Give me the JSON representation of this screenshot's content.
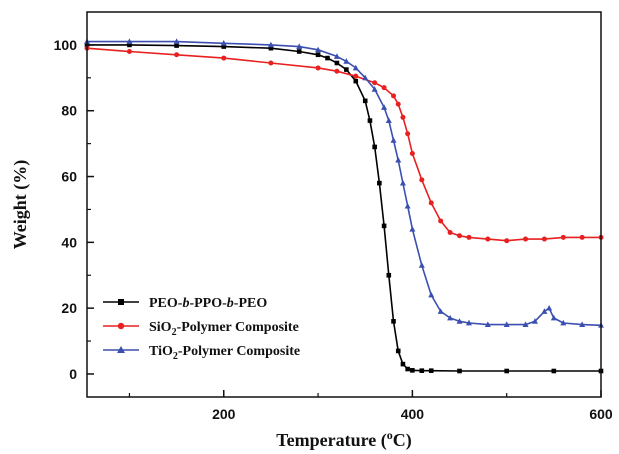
{
  "chart_data": {
    "type": "line",
    "xlabel": {
      "prefix": "Temperature (",
      "sup": "o",
      "suffix": "C)"
    },
    "ylabel": "Weight (%)",
    "xlim": [
      55,
      600
    ],
    "ylim": [
      -7,
      110
    ],
    "xticks": [
      200,
      400,
      600
    ],
    "xminorticks": [
      100,
      300,
      500
    ],
    "yticks": [
      0,
      20,
      40,
      60,
      80,
      100
    ],
    "legend_position": "lower-left",
    "series": [
      {
        "name_parts": [
          "PEO-",
          "b",
          "-PPO-",
          "b",
          "-PEO"
        ],
        "name_italic": [
          false,
          true,
          false,
          true,
          false
        ],
        "color": "#000000",
        "marker": "square",
        "x": [
          55,
          100,
          150,
          200,
          250,
          280,
          300,
          310,
          320,
          330,
          340,
          350,
          355,
          360,
          365,
          370,
          375,
          380,
          385,
          390,
          395,
          400,
          410,
          420,
          450,
          500,
          550,
          600
        ],
        "y": [
          100,
          100,
          99.8,
          99.5,
          99,
          98,
          97,
          96,
          94.5,
          92.5,
          89,
          83,
          77,
          69,
          58,
          45,
          30,
          16,
          7,
          3,
          1.5,
          1.1,
          1,
          1,
          0.9,
          0.9,
          0.9,
          0.9
        ]
      },
      {
        "name_parts": [
          "SiO",
          "2",
          "-Polymer Composite"
        ],
        "name_sub": [
          false,
          true,
          false
        ],
        "color": "#e82020",
        "marker": "circle",
        "x": [
          55,
          100,
          150,
          200,
          250,
          300,
          320,
          340,
          360,
          370,
          380,
          385,
          390,
          395,
          400,
          410,
          420,
          430,
          440,
          450,
          460,
          480,
          500,
          520,
          540,
          560,
          580,
          600
        ],
        "y": [
          99,
          98,
          97,
          96,
          94.5,
          93,
          92,
          90.5,
          88.5,
          87,
          84.5,
          82,
          78,
          73,
          67,
          59,
          52,
          46.5,
          43,
          42,
          41.5,
          41,
          40.5,
          41,
          41,
          41.5,
          41.5,
          41.5
        ]
      },
      {
        "name_parts": [
          "TiO",
          "2",
          "-Polymer Composite"
        ],
        "name_sub": [
          false,
          true,
          false
        ],
        "color": "#3b4fb0",
        "marker": "triangle",
        "x": [
          55,
          100,
          150,
          200,
          250,
          280,
          300,
          320,
          330,
          340,
          350,
          360,
          370,
          375,
          380,
          385,
          390,
          395,
          400,
          410,
          420,
          430,
          440,
          450,
          460,
          480,
          500,
          520,
          530,
          540,
          545,
          550,
          560,
          580,
          600
        ],
        "y": [
          101,
          101,
          101,
          100.5,
          100,
          99.5,
          98.5,
          96.5,
          95,
          93,
          90,
          86.5,
          81,
          77,
          71,
          65,
          58,
          51,
          44,
          33,
          24,
          19,
          17,
          16,
          15.5,
          15,
          15,
          15,
          16,
          19,
          20,
          17,
          15.5,
          15,
          14.8
        ]
      }
    ]
  }
}
